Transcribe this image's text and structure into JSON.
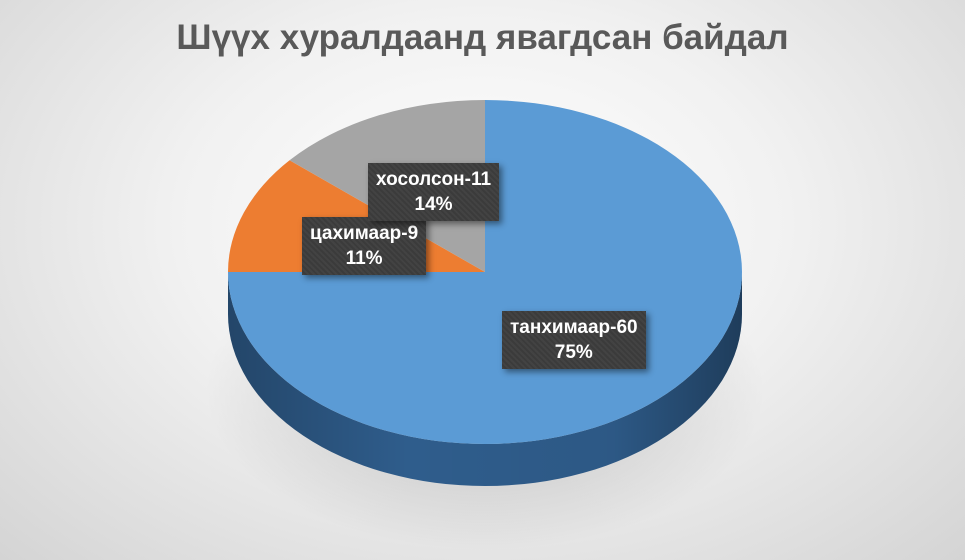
{
  "chart_data": {
    "type": "pie",
    "title": "Шүүх хуралдаанд явагдсан байдал",
    "slices": [
      {
        "category": "танхимаар",
        "count": "60",
        "percent": "75%",
        "value": 60,
        "color": "#5b9bd5",
        "side_color": "#2f5d8c"
      },
      {
        "category": "цахимаар",
        "count": "9",
        "percent": "11%",
        "value": 9,
        "color": "#ed7d31",
        "side_color": "#9c4f1c"
      },
      {
        "category": "хосолсон",
        "count": "11",
        "percent": "14%",
        "value": 11,
        "color": "#a5a5a5",
        "side_color": "#6b6b6b"
      }
    ],
    "data_labels": [
      {
        "text": "танхимаар-60",
        "percent": "75%"
      },
      {
        "text": "цахимаар-9",
        "percent": "11%"
      },
      {
        "text": "хосолсон-11",
        "percent": "14%"
      }
    ],
    "legend": "none",
    "style": "3d"
  }
}
